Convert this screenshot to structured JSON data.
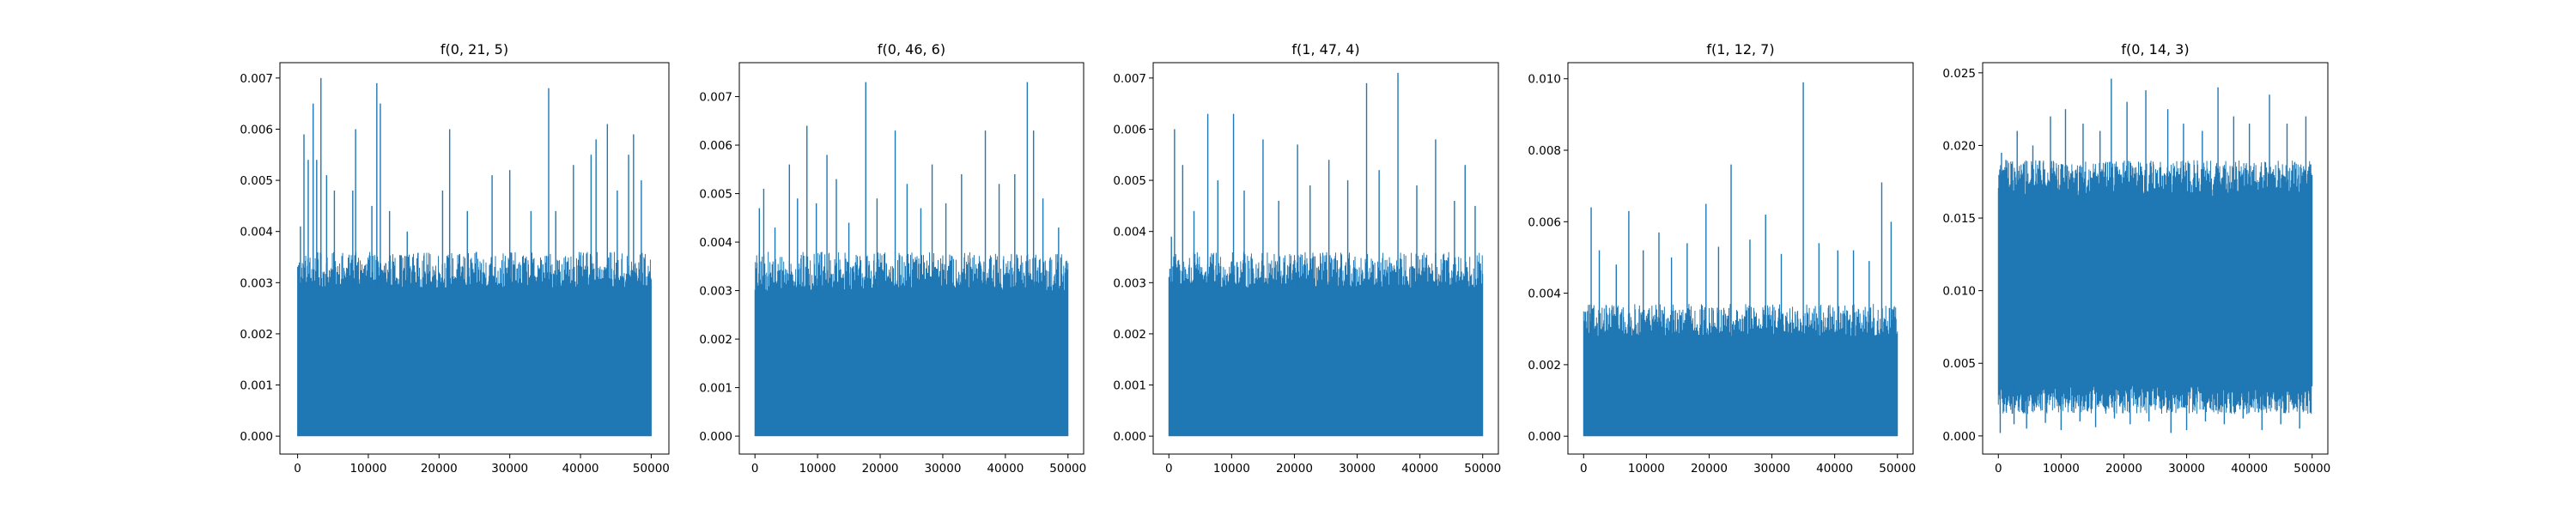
{
  "figure": {
    "name": "five-panel-signal-figure"
  },
  "colors": {
    "series": "#1f77b4",
    "axes": "#000000",
    "background": "#ffffff"
  },
  "chart_data": [
    {
      "type": "line",
      "title": "f(0, 21, 5)",
      "xlabel": "",
      "ylabel": "",
      "xlim": [
        -2500,
        52500
      ],
      "ylim": [
        -0.00035,
        0.0073
      ],
      "xticks": [
        0,
        10000,
        20000,
        30000,
        40000,
        50000
      ],
      "xtick_labels": [
        "0",
        "10000",
        "20000",
        "30000",
        "40000",
        "50000"
      ],
      "yticks": [
        0.0,
        0.001,
        0.002,
        0.003,
        0.004,
        0.005,
        0.006,
        0.007
      ],
      "ytick_labels": [
        "0.000",
        "0.001",
        "0.002",
        "0.003",
        "0.004",
        "0.005",
        "0.006",
        "0.007"
      ],
      "series": [
        {
          "name": "f(0, 21, 5)",
          "x_range": [
            0,
            50000
          ],
          "n_points": 50000,
          "band_min": 0.0,
          "dense_max": 0.0029,
          "typical_peak": 0.0036,
          "peaks": [
            {
              "x": 400,
              "y": 0.0041
            },
            {
              "x": 900,
              "y": 0.0059
            },
            {
              "x": 1500,
              "y": 0.0054
            },
            {
              "x": 2200,
              "y": 0.0065
            },
            {
              "x": 2700,
              "y": 0.0054
            },
            {
              "x": 3300,
              "y": 0.007
            },
            {
              "x": 4100,
              "y": 0.0051
            },
            {
              "x": 5200,
              "y": 0.0048
            },
            {
              "x": 7800,
              "y": 0.0048
            },
            {
              "x": 8200,
              "y": 0.006
            },
            {
              "x": 10500,
              "y": 0.0045
            },
            {
              "x": 11200,
              "y": 0.0069
            },
            {
              "x": 11700,
              "y": 0.0065
            },
            {
              "x": 13000,
              "y": 0.0044
            },
            {
              "x": 15500,
              "y": 0.004
            },
            {
              "x": 20500,
              "y": 0.0048
            },
            {
              "x": 21500,
              "y": 0.006
            },
            {
              "x": 24000,
              "y": 0.0044
            },
            {
              "x": 27500,
              "y": 0.0051
            },
            {
              "x": 30000,
              "y": 0.0052
            },
            {
              "x": 33000,
              "y": 0.0044
            },
            {
              "x": 35500,
              "y": 0.0068
            },
            {
              "x": 36500,
              "y": 0.0044
            },
            {
              "x": 39000,
              "y": 0.0053
            },
            {
              "x": 41500,
              "y": 0.0055
            },
            {
              "x": 42200,
              "y": 0.0058
            },
            {
              "x": 43800,
              "y": 0.0061
            },
            {
              "x": 45200,
              "y": 0.0048
            },
            {
              "x": 46800,
              "y": 0.0055
            },
            {
              "x": 47500,
              "y": 0.0059
            },
            {
              "x": 48600,
              "y": 0.005
            }
          ]
        }
      ]
    },
    {
      "type": "line",
      "title": "f(0, 46, 6)",
      "xlabel": "",
      "ylabel": "",
      "xlim": [
        -2500,
        52500
      ],
      "ylim": [
        -0.00037,
        0.0077
      ],
      "xticks": [
        0,
        10000,
        20000,
        30000,
        40000,
        50000
      ],
      "xtick_labels": [
        "0",
        "10000",
        "20000",
        "30000",
        "40000",
        "50000"
      ],
      "yticks": [
        0.0,
        0.001,
        0.002,
        0.003,
        0.004,
        0.005,
        0.006,
        0.007
      ],
      "ytick_labels": [
        "0.000",
        "0.001",
        "0.002",
        "0.003",
        "0.004",
        "0.005",
        "0.006",
        "0.007"
      ],
      "series": [
        {
          "name": "f(0, 46, 6)",
          "x_range": [
            0,
            50000
          ],
          "n_points": 50000,
          "band_min": 0.0,
          "dense_max": 0.003,
          "typical_peak": 0.0038,
          "peaks": [
            {
              "x": 700,
              "y": 0.0047
            },
            {
              "x": 1400,
              "y": 0.0051
            },
            {
              "x": 3200,
              "y": 0.0043
            },
            {
              "x": 5500,
              "y": 0.0056
            },
            {
              "x": 6800,
              "y": 0.0049
            },
            {
              "x": 8300,
              "y": 0.0064
            },
            {
              "x": 9800,
              "y": 0.0048
            },
            {
              "x": 11500,
              "y": 0.0058
            },
            {
              "x": 13000,
              "y": 0.0053
            },
            {
              "x": 15000,
              "y": 0.0044
            },
            {
              "x": 17700,
              "y": 0.0073
            },
            {
              "x": 19500,
              "y": 0.0049
            },
            {
              "x": 22400,
              "y": 0.0063
            },
            {
              "x": 24300,
              "y": 0.0052
            },
            {
              "x": 26500,
              "y": 0.0047
            },
            {
              "x": 28300,
              "y": 0.0056
            },
            {
              "x": 30500,
              "y": 0.0048
            },
            {
              "x": 33000,
              "y": 0.0054
            },
            {
              "x": 36800,
              "y": 0.0063
            },
            {
              "x": 39000,
              "y": 0.0052
            },
            {
              "x": 41500,
              "y": 0.0054
            },
            {
              "x": 43500,
              "y": 0.0073
            },
            {
              "x": 44500,
              "y": 0.0063
            },
            {
              "x": 46000,
              "y": 0.0049
            },
            {
              "x": 48500,
              "y": 0.0043
            }
          ]
        }
      ]
    },
    {
      "type": "line",
      "title": "f(1, 47, 4)",
      "xlabel": "",
      "ylabel": "",
      "xlim": [
        -2500,
        52500
      ],
      "ylim": [
        -0.00035,
        0.0073
      ],
      "xticks": [
        0,
        10000,
        20000,
        30000,
        40000,
        50000
      ],
      "xtick_labels": [
        "0",
        "10000",
        "20000",
        "30000",
        "40000",
        "50000"
      ],
      "yticks": [
        0.0,
        0.001,
        0.002,
        0.003,
        0.004,
        0.005,
        0.006,
        0.007
      ],
      "ytick_labels": [
        "0.000",
        "0.001",
        "0.002",
        "0.003",
        "0.004",
        "0.005",
        "0.006",
        "0.007"
      ],
      "series": [
        {
          "name": "f(1, 47, 4)",
          "x_range": [
            0,
            50000
          ],
          "n_points": 50000,
          "band_min": 0.0,
          "dense_max": 0.0029,
          "typical_peak": 0.0036,
          "peaks": [
            {
              "x": 400,
              "y": 0.0039
            },
            {
              "x": 900,
              "y": 0.006
            },
            {
              "x": 2200,
              "y": 0.0053
            },
            {
              "x": 4000,
              "y": 0.0044
            },
            {
              "x": 6200,
              "y": 0.0063
            },
            {
              "x": 7800,
              "y": 0.005
            },
            {
              "x": 10300,
              "y": 0.0063
            },
            {
              "x": 12000,
              "y": 0.0048
            },
            {
              "x": 15000,
              "y": 0.0058
            },
            {
              "x": 17500,
              "y": 0.0046
            },
            {
              "x": 20500,
              "y": 0.0057
            },
            {
              "x": 22500,
              "y": 0.0049
            },
            {
              "x": 25500,
              "y": 0.0054
            },
            {
              "x": 28500,
              "y": 0.005
            },
            {
              "x": 31500,
              "y": 0.0069
            },
            {
              "x": 33500,
              "y": 0.0052
            },
            {
              "x": 36500,
              "y": 0.0071
            },
            {
              "x": 39500,
              "y": 0.0049
            },
            {
              "x": 42500,
              "y": 0.0058
            },
            {
              "x": 45500,
              "y": 0.0046
            },
            {
              "x": 47200,
              "y": 0.0053
            },
            {
              "x": 48800,
              "y": 0.0045
            }
          ]
        }
      ]
    },
    {
      "type": "line",
      "title": "f(1, 12, 7)",
      "xlabel": "",
      "ylabel": "",
      "xlim": [
        -2500,
        52500
      ],
      "ylim": [
        -0.0005,
        0.01045
      ],
      "xticks": [
        0,
        10000,
        20000,
        30000,
        40000,
        50000
      ],
      "xtick_labels": [
        "0",
        "10000",
        "20000",
        "30000",
        "40000",
        "50000"
      ],
      "yticks": [
        0.0,
        0.002,
        0.004,
        0.006,
        0.008,
        0.01
      ],
      "ytick_labels": [
        "0.000",
        "0.002",
        "0.004",
        "0.006",
        "0.008",
        "0.010"
      ],
      "series": [
        {
          "name": "f(1, 12, 7)",
          "x_range": [
            0,
            50000
          ],
          "n_points": 50000,
          "band_min": 0.0,
          "dense_max": 0.0028,
          "typical_peak": 0.0037,
          "peaks": [
            {
              "x": 1200,
              "y": 0.0064
            },
            {
              "x": 2500,
              "y": 0.0052
            },
            {
              "x": 5200,
              "y": 0.0048
            },
            {
              "x": 7200,
              "y": 0.0063
            },
            {
              "x": 9500,
              "y": 0.0052
            },
            {
              "x": 12000,
              "y": 0.0057
            },
            {
              "x": 14000,
              "y": 0.005
            },
            {
              "x": 16500,
              "y": 0.0054
            },
            {
              "x": 19500,
              "y": 0.0065
            },
            {
              "x": 21500,
              "y": 0.0053
            },
            {
              "x": 23500,
              "y": 0.0076
            },
            {
              "x": 26500,
              "y": 0.0055
            },
            {
              "x": 29000,
              "y": 0.0062
            },
            {
              "x": 31500,
              "y": 0.0051
            },
            {
              "x": 35000,
              "y": 0.0099
            },
            {
              "x": 37500,
              "y": 0.0054
            },
            {
              "x": 40500,
              "y": 0.0052
            },
            {
              "x": 43000,
              "y": 0.0052
            },
            {
              "x": 45500,
              "y": 0.0049
            },
            {
              "x": 47500,
              "y": 0.0071
            },
            {
              "x": 49000,
              "y": 0.006
            }
          ]
        }
      ]
    },
    {
      "type": "line",
      "title": "f(0, 14, 3)",
      "xlabel": "",
      "ylabel": "",
      "xlim": [
        -2500,
        52500
      ],
      "ylim": [
        -0.00125,
        0.0257
      ],
      "xticks": [
        0,
        10000,
        20000,
        30000,
        40000,
        50000
      ],
      "xtick_labels": [
        "0",
        "10000",
        "20000",
        "30000",
        "40000",
        "50000"
      ],
      "yticks": [
        0.0,
        0.005,
        0.01,
        0.015,
        0.02,
        0.025
      ],
      "ytick_labels": [
        "0.000",
        "0.005",
        "0.010",
        "0.015",
        "0.020",
        "0.025"
      ],
      "series": [
        {
          "name": "f(0, 14, 3)",
          "x_range": [
            0,
            50000
          ],
          "n_points": 50000,
          "band_min": 0.0,
          "band_center": 0.0095,
          "dense_low": 0.0035,
          "dense_high": 0.0165,
          "typical_peak": 0.019,
          "typical_trough": 0.0015,
          "peaks": [
            {
              "x": 500,
              "y": 0.0195
            },
            {
              "x": 1200,
              "y": 0.019
            },
            {
              "x": 3000,
              "y": 0.021
            },
            {
              "x": 5500,
              "y": 0.02
            },
            {
              "x": 8300,
              "y": 0.022
            },
            {
              "x": 10700,
              "y": 0.0225
            },
            {
              "x": 13500,
              "y": 0.0215
            },
            {
              "x": 16200,
              "y": 0.021
            },
            {
              "x": 18000,
              "y": 0.0246
            },
            {
              "x": 20500,
              "y": 0.023
            },
            {
              "x": 23500,
              "y": 0.0238
            },
            {
              "x": 27000,
              "y": 0.0225
            },
            {
              "x": 29500,
              "y": 0.0215
            },
            {
              "x": 32500,
              "y": 0.021
            },
            {
              "x": 35000,
              "y": 0.024
            },
            {
              "x": 37500,
              "y": 0.022
            },
            {
              "x": 40000,
              "y": 0.0215
            },
            {
              "x": 43200,
              "y": 0.0235
            },
            {
              "x": 46000,
              "y": 0.0215
            },
            {
              "x": 49000,
              "y": 0.022
            }
          ],
          "troughs": [
            {
              "x": 300,
              "y": 0.0002
            },
            {
              "x": 2500,
              "y": 0.0008
            },
            {
              "x": 4500,
              "y": 0.0005
            },
            {
              "x": 7500,
              "y": 0.0009
            },
            {
              "x": 10000,
              "y": 0.0004
            },
            {
              "x": 13000,
              "y": 0.001
            },
            {
              "x": 15500,
              "y": 0.0006
            },
            {
              "x": 18500,
              "y": 0.0012
            },
            {
              "x": 21000,
              "y": 0.0008
            },
            {
              "x": 24000,
              "y": 0.001
            },
            {
              "x": 27500,
              "y": 0.0002
            },
            {
              "x": 30000,
              "y": 0.0004
            },
            {
              "x": 33000,
              "y": 0.001
            },
            {
              "x": 36000,
              "y": 0.0008
            },
            {
              "x": 39000,
              "y": 0.0012
            },
            {
              "x": 42000,
              "y": 0.0004
            },
            {
              "x": 45000,
              "y": 0.0008
            },
            {
              "x": 48000,
              "y": 0.0005
            }
          ]
        }
      ]
    }
  ]
}
